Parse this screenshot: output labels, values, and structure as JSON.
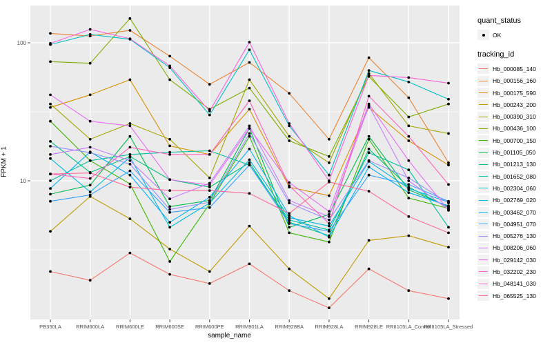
{
  "chart_data": {
    "type": "line",
    "xlabel": "sample_name",
    "ylabel": "FPKM + 1",
    "y_scale": "log10",
    "ylim": [
      1.0,
      186
    ],
    "y_ticks": [
      100,
      10
    ],
    "y_minor_gridlines": [
      31.62,
      3.162
    ],
    "grid": "on",
    "legend_position": "right",
    "panel_bg": "#EBEBEB",
    "grid_color": "#FFFFFF",
    "point_color": "#000000",
    "tick_label_color": "#4D4D4D",
    "categories": [
      "PB350LA",
      "RRIM600LA",
      "RRIM600LE",
      "RRIM600SE",
      "RRIM600PE",
      "RRIM901LA",
      "RRIM928BA",
      "RRIM928LA",
      "RRIM928LE",
      "RRII105LA_Control",
      "RRII105LA_Stressed"
    ],
    "legend": {
      "quant_status_title": "quant_status",
      "quant_status_items": [
        {
          "label": "OK",
          "symbol": "point"
        }
      ],
      "tracking_id_title": "tracking_id"
    },
    "series": [
      {
        "name": "Hb_000085_140",
        "color": "#F8766D",
        "values": [
          2.2,
          1.9,
          3.0,
          2.1,
          1.8,
          2.5,
          1.6,
          1.2,
          2.3,
          1.6,
          1.4
        ]
      },
      {
        "name": "Hb_000156_160",
        "color": "#EA8331",
        "values": [
          117,
          112,
          123,
          80,
          50,
          72,
          43,
          20,
          78,
          40,
          13.5
        ]
      },
      {
        "name": "Hb_000175_590",
        "color": "#D89000",
        "values": [
          34,
          42,
          54,
          17.9,
          15.5,
          33,
          9.0,
          7.8,
          34,
          19.5,
          13
        ]
      },
      {
        "name": "Hb_000243_200",
        "color": "#C09B00",
        "values": [
          4.3,
          7.7,
          5.3,
          3.2,
          2.2,
          4.7,
          2.3,
          1.4,
          3.7,
          4.0,
          3.3
        ]
      },
      {
        "name": "Hb_000390_310",
        "color": "#A3A500",
        "values": [
          36,
          20,
          26,
          20,
          10.5,
          54,
          21,
          13.5,
          60,
          25,
          22
        ]
      },
      {
        "name": "Hb_000436_100",
        "color": "#7CAE00",
        "values": [
          73,
          71,
          150,
          54,
          33,
          47,
          19.5,
          15,
          57,
          29,
          36
        ]
      },
      {
        "name": "Hb_000700_150",
        "color": "#39B600",
        "values": [
          27,
          14,
          9.5,
          2.6,
          6.8,
          21,
          4.2,
          3.6,
          20,
          7.5,
          6.3
        ]
      },
      {
        "name": "Hb_001105_050",
        "color": "#00BB4E",
        "values": [
          8.0,
          9.3,
          21,
          6.5,
          7.2,
          24,
          4.6,
          5.7,
          21,
          8.6,
          6.5
        ]
      },
      {
        "name": "Hb_001213_130",
        "color": "#00BF7D",
        "values": [
          19.3,
          11.5,
          15,
          10.2,
          9.0,
          13.5,
          5.0,
          4.0,
          17,
          9.0,
          6.4
        ]
      },
      {
        "name": "Hb_001652_080",
        "color": "#00C1A3",
        "values": [
          10,
          14,
          15.5,
          16.1,
          16.5,
          13,
          5.2,
          4.4,
          16,
          12,
          4.6
        ]
      },
      {
        "name": "Hb_002304_060",
        "color": "#00BFC4",
        "values": [
          97,
          115,
          106,
          66,
          30,
          89,
          25,
          11,
          63,
          52,
          39
        ]
      },
      {
        "name": "Hb_002769_020",
        "color": "#00BAE0",
        "values": [
          14.5,
          8.3,
          14.8,
          4.6,
          6.9,
          14.2,
          5.4,
          4.7,
          13.8,
          8.8,
          7.0
        ]
      },
      {
        "name": "Hb_003462_070",
        "color": "#00B0F6",
        "values": [
          8.8,
          16.2,
          11.0,
          5.0,
          7.6,
          17.0,
          5.6,
          3.9,
          12.6,
          8.2,
          6.6
        ]
      },
      {
        "name": "Hb_004951_070",
        "color": "#35A2FF",
        "values": [
          7.1,
          7.9,
          11.8,
          5.9,
          6.4,
          13.0,
          4.9,
          4.3,
          11.0,
          9.4,
          7.1
        ]
      },
      {
        "name": "Hb_005276_130",
        "color": "#9590FF",
        "values": [
          17.8,
          16.0,
          13.2,
          6.2,
          7.0,
          22.0,
          6.9,
          5.2,
          14.0,
          10.5,
          6.9
        ]
      },
      {
        "name": "Hb_008206_060",
        "color": "#C77CFF",
        "values": [
          15.5,
          17.5,
          14.0,
          7.4,
          9.6,
          25.0,
          7.2,
          5.5,
          35.0,
          10.0,
          6.2
        ]
      },
      {
        "name": "Hb_029142_030",
        "color": "#E76BF3",
        "values": [
          42,
          27,
          25,
          10.2,
          9.3,
          24,
          9.7,
          6.0,
          36,
          14,
          6.1
        ]
      },
      {
        "name": "Hb_032202_230",
        "color": "#FA62DB",
        "values": [
          99,
          125,
          107,
          68,
          32,
          101,
          26,
          10,
          58,
          56,
          51
        ]
      },
      {
        "name": "Hb_048141_030",
        "color": "#FF62BC",
        "values": [
          11.2,
          10.4,
          17.5,
          15.5,
          15.5,
          38,
          9.2,
          4.9,
          41,
          21,
          9.4
        ]
      },
      {
        "name": "Hb_065525_130",
        "color": "#FF6A98",
        "values": [
          11.2,
          11.4,
          9.0,
          8.5,
          8.5,
          8.1,
          5.8,
          9.8,
          8.4,
          5.5,
          4.2
        ]
      }
    ]
  }
}
